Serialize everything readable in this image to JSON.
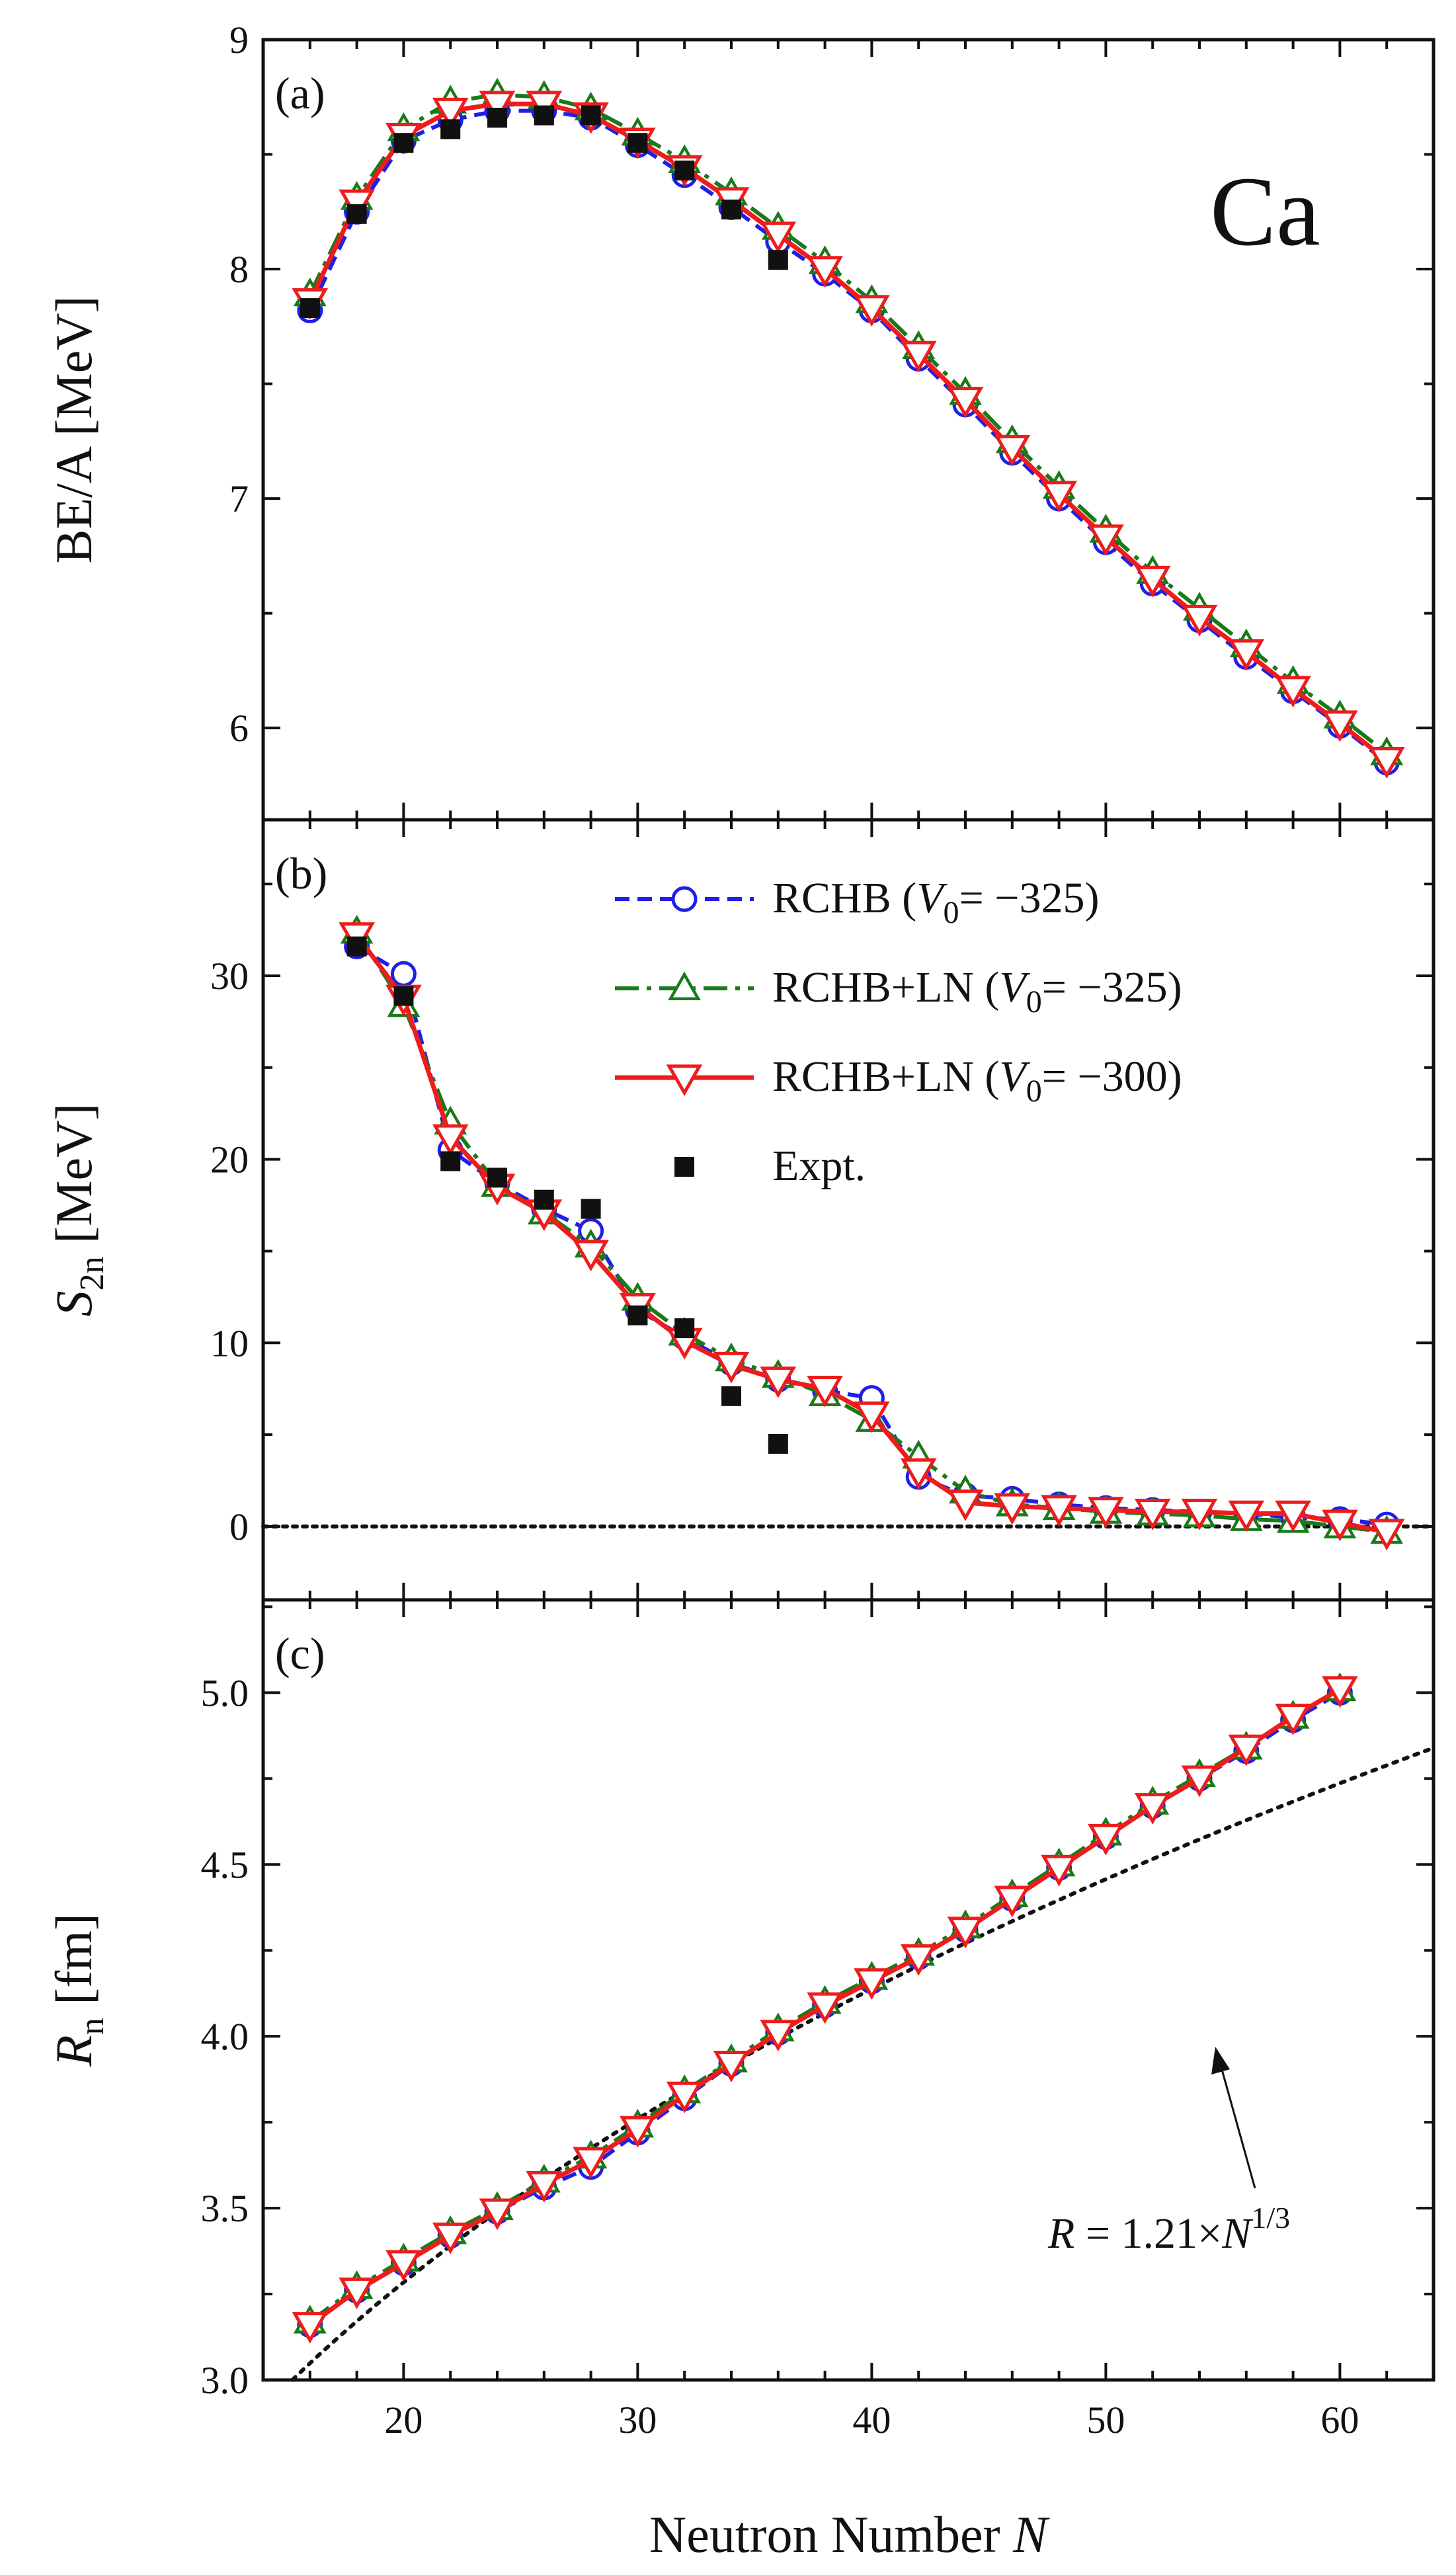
{
  "figure": {
    "element_label": "Ca",
    "xlabel_main": "Neutron Number ",
    "xlabel_italic": "N",
    "x_ticks": [
      20,
      30,
      40,
      50,
      60
    ],
    "xlim": [
      14,
      64
    ]
  },
  "legend": {
    "entries": [
      {
        "key": "rchb",
        "parts": [
          [
            "RCHB (",
            false
          ],
          [
            "V",
            true
          ],
          [
            "0",
            "sub"
          ],
          [
            "= −325)",
            false
          ]
        ]
      },
      {
        "key": "rchb_ln325",
        "parts": [
          [
            "RCHB+LN (",
            false
          ],
          [
            "V",
            true
          ],
          [
            "0",
            "sub"
          ],
          [
            "= −325)",
            false
          ]
        ]
      },
      {
        "key": "rchb_ln300",
        "parts": [
          [
            "RCHB+LN (",
            false
          ],
          [
            "V",
            true
          ],
          [
            "0",
            "sub"
          ],
          [
            "= −300)",
            false
          ]
        ]
      },
      {
        "key": "expt",
        "parts": [
          [
            "Expt.",
            false
          ]
        ]
      }
    ]
  },
  "annotation": {
    "prefix_italic": "R",
    "text": " = 1.21×",
    "base": "N",
    "exponent": "1/3"
  },
  "colors": {
    "rchb": "#1f1fe6",
    "rchb_ln325": "#1a7a1a",
    "rchb_ln300": "#ee1c1c",
    "expt": "#111111"
  },
  "chart_data": [
    {
      "type": "line",
      "panel_label": "(a)",
      "ylabel": "BE/A [MeV]",
      "ylim": [
        5.6,
        9.0
      ],
      "y_ticks": [
        "6",
        "7",
        "8",
        "9"
      ],
      "y_tick_values": [
        6,
        7,
        8,
        9
      ],
      "x": [
        16,
        18,
        20,
        22,
        24,
        26,
        28,
        30,
        32,
        34,
        36,
        38,
        40,
        42,
        44,
        46,
        48,
        50,
        52,
        54,
        56,
        58,
        60,
        62
      ],
      "series": [
        {
          "name": "RCHB (V0= −325)",
          "key": "rchb",
          "values": [
            7.82,
            8.25,
            8.56,
            8.65,
            8.69,
            8.69,
            8.66,
            8.54,
            8.41,
            8.27,
            8.12,
            7.98,
            7.82,
            7.61,
            7.41,
            7.2,
            7.0,
            6.81,
            6.63,
            6.47,
            6.31,
            6.16,
            6.01,
            5.85
          ]
        },
        {
          "name": "RCHB+LN (V0= −325)",
          "key": "rchb_ln325",
          "values": [
            7.89,
            8.31,
            8.61,
            8.73,
            8.76,
            8.75,
            8.7,
            8.59,
            8.47,
            8.33,
            8.18,
            8.03,
            7.86,
            7.66,
            7.46,
            7.25,
            7.05,
            6.86,
            6.68,
            6.52,
            6.36,
            6.2,
            6.05,
            5.89
          ]
        },
        {
          "name": "RCHB+LN (V0= −300)",
          "key": "rchb_ln300",
          "values": [
            7.86,
            8.29,
            8.58,
            8.69,
            8.72,
            8.72,
            8.67,
            8.56,
            8.44,
            8.3,
            8.15,
            8.0,
            7.83,
            7.63,
            7.43,
            7.22,
            7.02,
            6.83,
            6.65,
            6.48,
            6.33,
            6.17,
            6.02,
            5.86
          ]
        }
      ],
      "expt": {
        "x": [
          16,
          18,
          20,
          22,
          24,
          26,
          28,
          30,
          32,
          34,
          36
        ],
        "values": [
          7.83,
          8.24,
          8.55,
          8.61,
          8.66,
          8.67,
          8.67,
          8.55,
          8.43,
          8.26,
          8.04
        ]
      }
    },
    {
      "type": "line",
      "panel_label": "(b)",
      "ylabel_main": "S",
      "ylabel_sub": "2n",
      "ylabel_unit": " [MeV]",
      "ylim": [
        -4,
        38.5
      ],
      "y_ticks": [
        "0",
        "10",
        "20",
        "30"
      ],
      "y_tick_values": [
        0,
        10,
        20,
        30
      ],
      "x": [
        18,
        20,
        22,
        24,
        26,
        28,
        30,
        32,
        34,
        36,
        38,
        40,
        42,
        44,
        46,
        48,
        50,
        52,
        54,
        56,
        58,
        60,
        62
      ],
      "series": [
        {
          "name": "RCHB (V0= −325)",
          "key": "rchb",
          "values": [
            31.6,
            30.1,
            20.5,
            18.7,
            17.3,
            16.1,
            11.8,
            10.3,
            8.9,
            8.0,
            7.4,
            7.0,
            2.7,
            1.7,
            1.5,
            1.2,
            1.0,
            0.9,
            0.8,
            0.7,
            0.5,
            0.4,
            0.1
          ]
        },
        {
          "name": "RCHB+LN (V0= −325)",
          "key": "rchb_ln325",
          "values": [
            32.4,
            28.4,
            22.0,
            18.6,
            17.1,
            15.3,
            12.4,
            10.5,
            9.1,
            8.2,
            7.2,
            5.8,
            3.8,
            1.9,
            1.2,
            1.0,
            0.8,
            0.7,
            0.6,
            0.4,
            0.3,
            0.0,
            -0.3
          ]
        },
        {
          "name": "RCHB+LN (V0= −300)",
          "key": "rchb_ln300",
          "values": [
            32.2,
            28.8,
            21.2,
            18.5,
            17.1,
            14.9,
            12.0,
            10.1,
            8.8,
            8.0,
            7.5,
            6.1,
            3.0,
            1.3,
            1.1,
            1.0,
            0.9,
            0.8,
            0.8,
            0.7,
            0.7,
            0.2,
            -0.3
          ]
        }
      ],
      "expt": {
        "x": [
          18,
          20,
          22,
          24,
          26,
          28,
          30,
          32,
          34,
          36
        ],
        "values": [
          31.6,
          28.9,
          19.9,
          19.0,
          17.8,
          17.3,
          11.5,
          10.8,
          7.1,
          4.5
        ]
      },
      "reference_line": 0
    },
    {
      "type": "line",
      "panel_label": "(c)",
      "ylabel_main": "R",
      "ylabel_sub": "n",
      "ylabel_unit": " [fm]",
      "ylim": [
        3.0,
        5.27
      ],
      "y_ticks": [
        "3.0",
        "3.5",
        "4.0",
        "4.5",
        "5.0"
      ],
      "y_tick_values": [
        3.0,
        3.5,
        4.0,
        4.5,
        5.0
      ],
      "x": [
        16,
        18,
        20,
        22,
        24,
        26,
        28,
        30,
        32,
        34,
        36,
        38,
        40,
        42,
        44,
        46,
        48,
        50,
        52,
        54,
        56,
        58,
        60
      ],
      "series": [
        {
          "name": "RCHB (V0= −325)",
          "key": "rchb",
          "values": [
            3.16,
            3.26,
            3.34,
            3.42,
            3.49,
            3.56,
            3.62,
            3.72,
            3.82,
            3.92,
            4.01,
            4.09,
            4.16,
            4.23,
            4.31,
            4.4,
            4.49,
            4.58,
            4.67,
            4.75,
            4.83,
            4.92,
            5.0
          ]
        },
        {
          "name": "RCHB+LN (V0= −325)",
          "key": "rchb_ln325",
          "values": [
            3.17,
            3.27,
            3.35,
            3.43,
            3.5,
            3.58,
            3.65,
            3.74,
            3.84,
            3.93,
            4.02,
            4.1,
            4.17,
            4.24,
            4.32,
            4.41,
            4.5,
            4.59,
            4.68,
            4.76,
            4.84,
            4.93,
            5.01
          ]
        },
        {
          "name": "RCHB+LN (V0= −300)",
          "key": "rchb_ln300",
          "values": [
            3.16,
            3.26,
            3.34,
            3.42,
            3.49,
            3.57,
            3.64,
            3.73,
            3.83,
            3.92,
            4.01,
            4.09,
            4.16,
            4.23,
            4.31,
            4.4,
            4.49,
            4.58,
            4.67,
            4.75,
            4.84,
            4.93,
            5.01
          ]
        }
      ],
      "reference_curve": {
        "name": "R = 1.21×N^(1/3)",
        "coefficient": 1.21,
        "exponent": 0.3333,
        "x_range": [
          14,
          64
        ]
      }
    }
  ]
}
